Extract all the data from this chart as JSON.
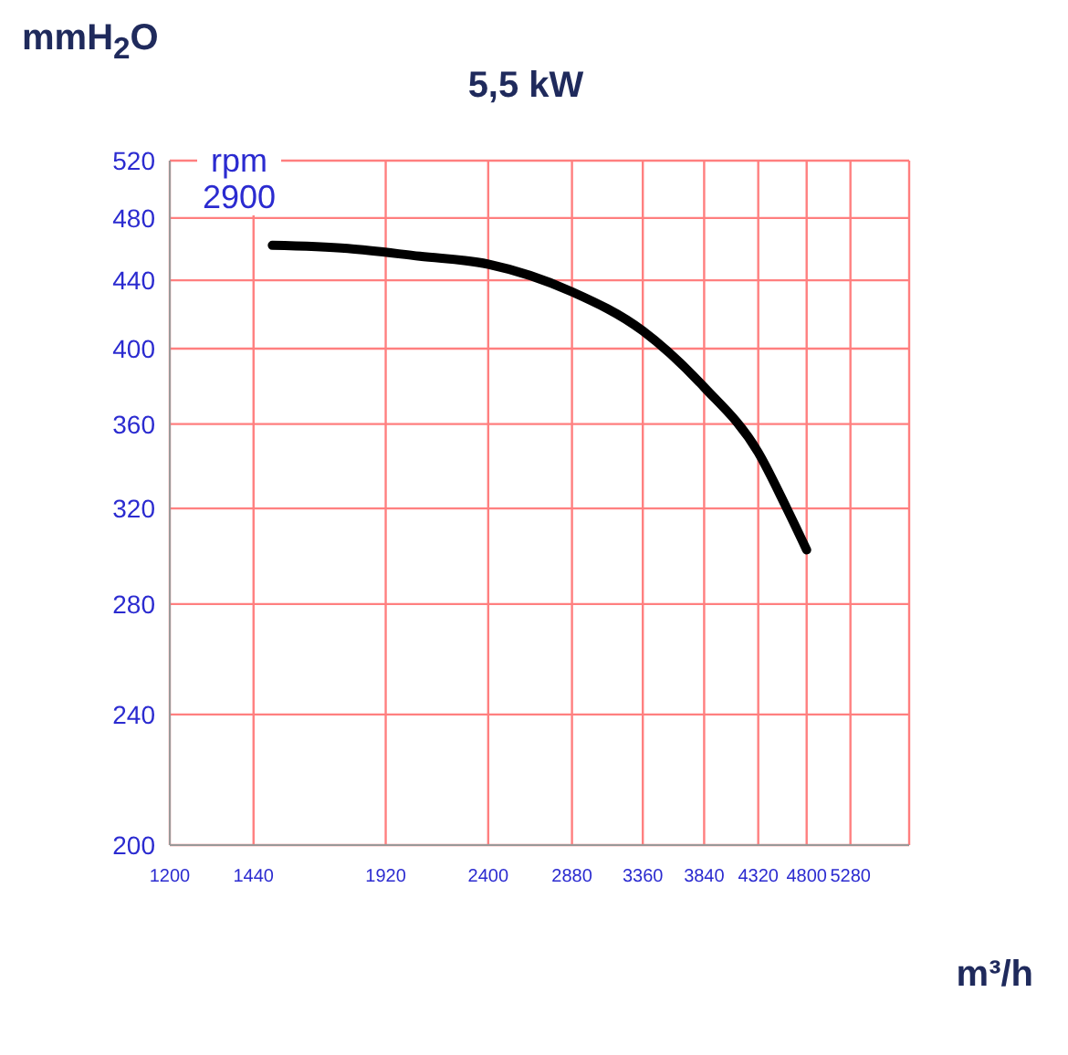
{
  "chart_data": {
    "type": "line",
    "title": "5,5 kW",
    "ylabel": "mmH$_{2}$O",
    "xlabel": "m³/h",
    "annotations": [
      "rpm",
      "2900"
    ],
    "log": "xy",
    "grid": true,
    "marker": "none",
    "line_style": "solid",
    "xlim": [
      1200,
      6000
    ],
    "xticks": [
      1200,
      1440,
      1920,
      2400,
      2880,
      3360,
      3840,
      4320,
      4800,
      5280
    ],
    "ylim": [
      200,
      520
    ],
    "yticks": [
      200,
      240,
      280,
      320,
      360,
      400,
      440,
      480,
      520
    ],
    "x": [
      1500,
      1768,
      2068,
      2400,
      2880,
      3360,
      3840,
      4320,
      4597,
      4800
    ],
    "series": [
      {
        "color": "#000000",
        "values": [
          462,
          460,
          455,
          450,
          433,
          410,
          379,
          346,
          320,
          302
        ]
      }
    ]
  }
}
